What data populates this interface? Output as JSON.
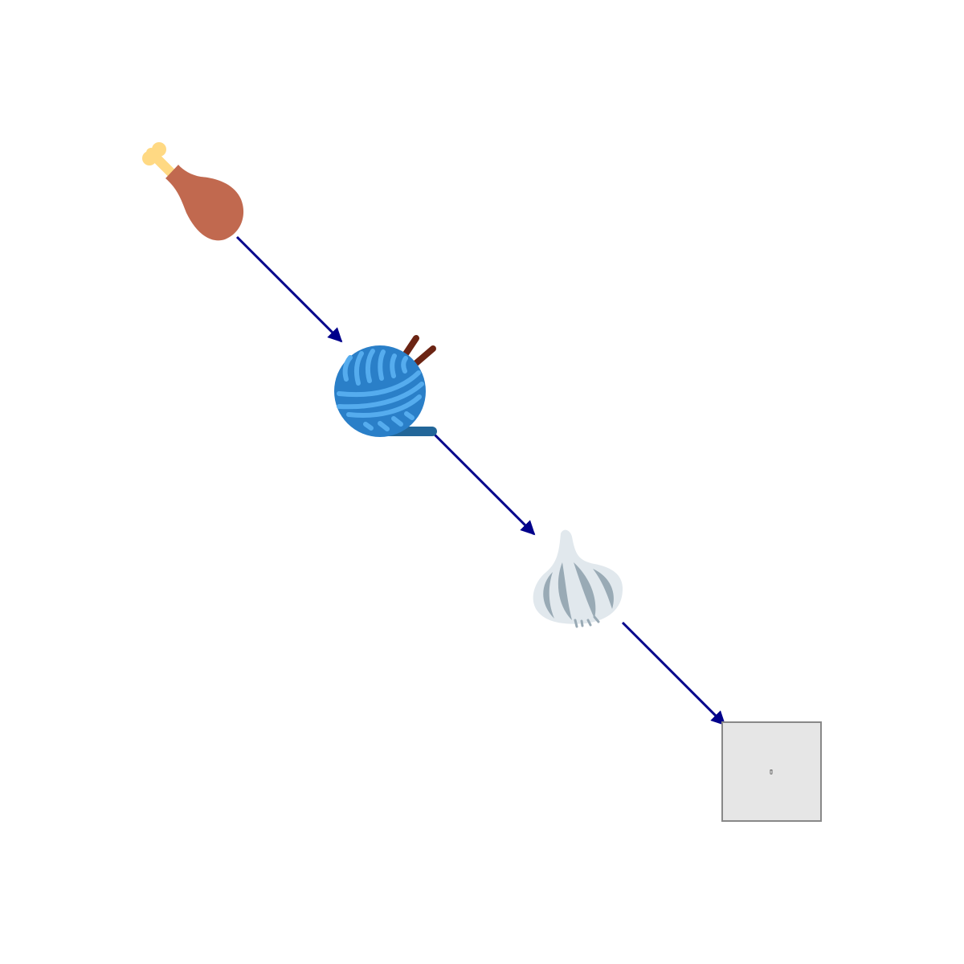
{
  "diagram": {
    "arrow_color": "#00008b",
    "nodes": [
      {
        "id": "node-1",
        "icon": "poultry-leg-icon"
      },
      {
        "id": "node-2",
        "icon": "yarn-ball-icon"
      },
      {
        "id": "node-3",
        "icon": "garlic-icon"
      },
      {
        "id": "node-4",
        "icon": "unknown-glyph-box",
        "glyph": "▯"
      }
    ],
    "edges": [
      {
        "from": "node-1",
        "to": "node-2"
      },
      {
        "from": "node-2",
        "to": "node-3"
      },
      {
        "from": "node-3",
        "to": "node-4"
      }
    ],
    "colors": {
      "drumstick_meat": "#c1694f",
      "drumstick_bone": "#ffd983",
      "yarn_dark": "#2a7fc8",
      "yarn_light": "#55acee",
      "yarn_tail": "#226699",
      "needles": "#6b2413",
      "garlic_light": "#e1e8ed",
      "garlic_dark": "#99aab5",
      "box_fill": "#e6e6e6",
      "box_stroke": "#888888"
    }
  }
}
